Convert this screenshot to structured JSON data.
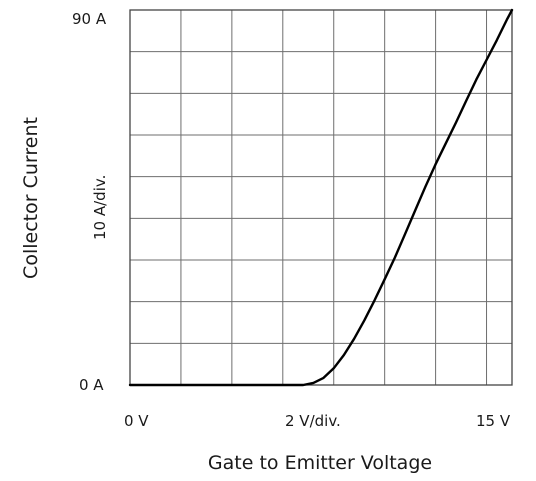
{
  "chart_data": {
    "type": "line",
    "xlabel": "Gate to Emitter Voltage",
    "ylabel": "Collector Current",
    "x_tick_labels": {
      "start": "0  V",
      "middle": "2  V/div.",
      "end": "15  V"
    },
    "y_tick_labels": {
      "bottom": "0  A",
      "middle": "10  A/div.",
      "top": "90  A"
    },
    "xlim": [
      0,
      15
    ],
    "ylim": [
      0,
      90
    ],
    "x_divisions": 7.5,
    "y_divisions": 9,
    "grid": true,
    "series": [
      {
        "color": "#000000",
        "x": [
          0,
          4,
          6.8,
          7.2,
          7.6,
          8.0,
          8.4,
          8.8,
          9.2,
          9.6,
          10.0,
          10.4,
          10.8,
          11.2,
          11.6,
          12.0,
          12.4,
          12.8,
          13.2,
          13.6,
          14.0,
          14.4,
          14.8,
          15.0
        ],
        "y": [
          0,
          0,
          0,
          0.5,
          1.7,
          4.0,
          7.2,
          11.1,
          15.5,
          20.3,
          25.4,
          30.6,
          36.2,
          41.9,
          47.6,
          53.0,
          58.0,
          63.0,
          68.2,
          73.3,
          78.0,
          82.7,
          87.7,
          90.0
        ]
      }
    ]
  }
}
